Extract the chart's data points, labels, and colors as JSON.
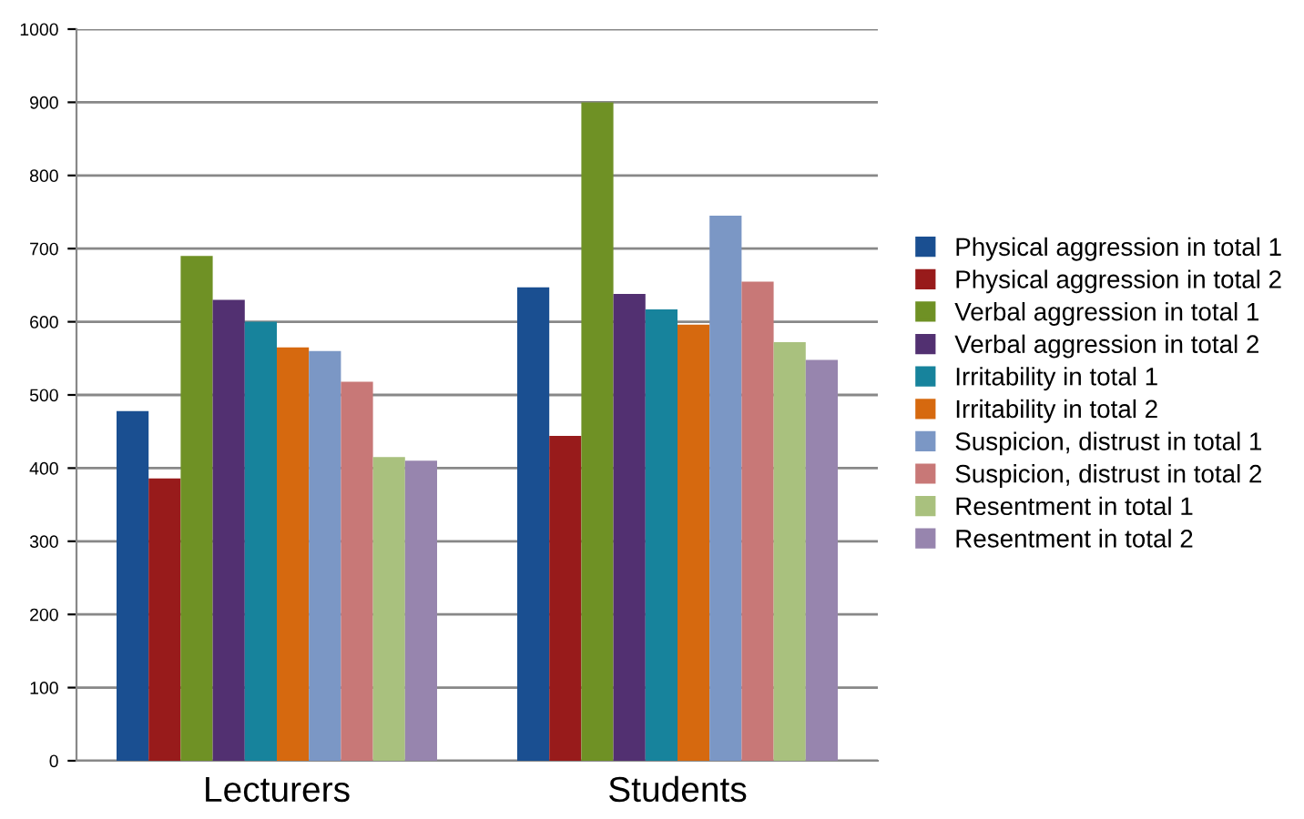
{
  "chart_data": {
    "type": "bar",
    "categories": [
      "Lecturers",
      "Students"
    ],
    "series": [
      {
        "name": "Physical aggression in total 1",
        "color": "#1a4f91",
        "values": [
          478,
          647
        ]
      },
      {
        "name": "Physical aggression in total 2",
        "color": "#981b1b",
        "values": [
          386,
          444
        ]
      },
      {
        "name": "Verbal aggression in total 1",
        "color": "#6f9125",
        "values": [
          690,
          900
        ]
      },
      {
        "name": "Verbal aggression in total 2",
        "color": "#523071",
        "values": [
          630,
          638
        ]
      },
      {
        "name": "Irritability in total 1",
        "color": "#17839c",
        "values": [
          600,
          617
        ]
      },
      {
        "name": "Irritability in total 2",
        "color": "#d6690f",
        "values": [
          565,
          596
        ]
      },
      {
        "name": "Suspicion, distrust in total 1",
        "color": "#7b97c5",
        "values": [
          560,
          745
        ]
      },
      {
        "name": "Suspicion, distrust in total 2",
        "color": "#c87877",
        "values": [
          518,
          655
        ]
      },
      {
        "name": "Resentment in total 1",
        "color": "#a9c17e",
        "values": [
          415,
          572
        ]
      },
      {
        "name": "Resentment in total 2",
        "color": "#9785ae",
        "values": [
          410,
          548
        ]
      }
    ],
    "ylim": [
      0,
      1000
    ],
    "yticks": [
      0,
      100,
      200,
      300,
      400,
      500,
      600,
      700,
      800,
      900,
      1000
    ],
    "grid": "y",
    "legend": "right"
  }
}
